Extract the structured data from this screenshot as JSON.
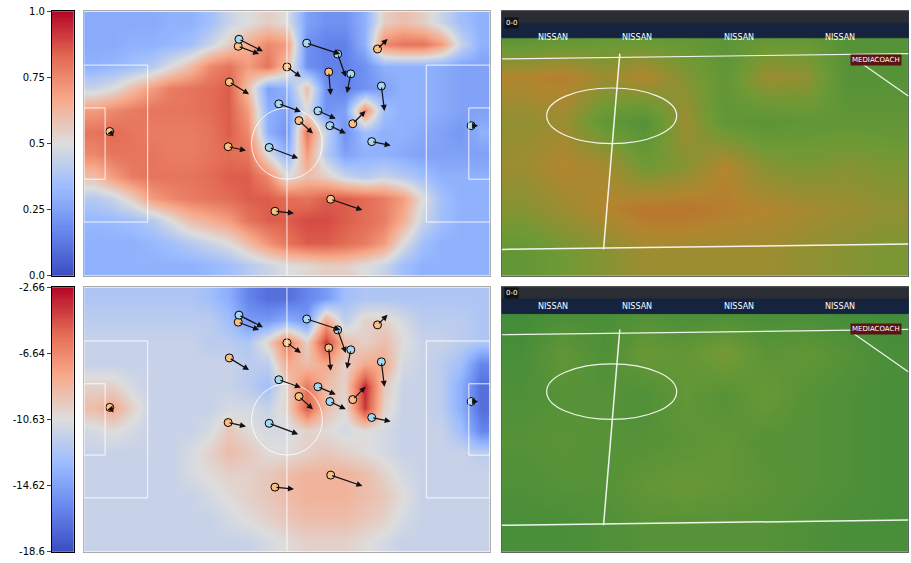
{
  "chart_data": [
    {
      "type": "heatmap",
      "tick_labels": false,
      "xlim": [
        0,
        105
      ],
      "ylim": [
        0,
        68
      ],
      "x": [
        2.5,
        7.5,
        12.5,
        17.5,
        22.5,
        27.5,
        32.5,
        37.5,
        42.5,
        47.5,
        52.5,
        57.5,
        62.5,
        67.5,
        72.5,
        77.5,
        82.5,
        87.5,
        92.5,
        97.5,
        102.5
      ],
      "y": [
        2.83,
        8.5,
        14.17,
        19.83,
        25.5,
        31.17,
        36.83,
        42.5,
        48.17,
        53.83,
        59.5,
        65.17
      ],
      "z": [
        [
          0.3,
          0.3,
          0.3,
          0.3,
          0.3,
          0.3,
          0.32,
          0.35,
          0.4,
          0.45,
          0.5,
          0.52,
          0.55,
          0.55,
          0.5,
          0.45,
          0.35,
          0.3,
          0.3,
          0.3,
          0.3
        ],
        [
          0.3,
          0.3,
          0.3,
          0.32,
          0.35,
          0.4,
          0.45,
          0.5,
          0.6,
          0.72,
          0.8,
          0.85,
          0.85,
          0.82,
          0.78,
          0.7,
          0.5,
          0.35,
          0.3,
          0.3,
          0.3
        ],
        [
          0.32,
          0.33,
          0.35,
          0.4,
          0.5,
          0.6,
          0.65,
          0.7,
          0.8,
          0.85,
          0.85,
          0.88,
          0.88,
          0.85,
          0.82,
          0.78,
          0.65,
          0.45,
          0.35,
          0.3,
          0.3
        ],
        [
          0.4,
          0.45,
          0.55,
          0.7,
          0.75,
          0.78,
          0.8,
          0.82,
          0.85,
          0.85,
          0.82,
          0.8,
          0.85,
          0.85,
          0.82,
          0.78,
          0.7,
          0.5,
          0.35,
          0.3,
          0.3
        ],
        [
          0.6,
          0.7,
          0.78,
          0.8,
          0.8,
          0.8,
          0.82,
          0.85,
          0.85,
          0.75,
          0.5,
          0.6,
          0.55,
          0.45,
          0.4,
          0.45,
          0.4,
          0.35,
          0.3,
          0.3,
          0.3
        ],
        [
          0.75,
          0.8,
          0.8,
          0.8,
          0.78,
          0.78,
          0.8,
          0.82,
          0.8,
          0.5,
          0.3,
          0.7,
          0.4,
          0.25,
          0.3,
          0.3,
          0.28,
          0.25,
          0.25,
          0.25,
          0.25
        ],
        [
          0.8,
          0.82,
          0.8,
          0.78,
          0.78,
          0.78,
          0.8,
          0.85,
          0.75,
          0.3,
          0.2,
          0.8,
          0.45,
          0.2,
          0.35,
          0.3,
          0.3,
          0.28,
          0.25,
          0.22,
          0.3
        ],
        [
          0.7,
          0.75,
          0.78,
          0.8,
          0.8,
          0.8,
          0.82,
          0.85,
          0.7,
          0.3,
          0.25,
          0.5,
          0.2,
          0.25,
          0.75,
          0.35,
          0.3,
          0.3,
          0.28,
          0.25,
          0.25
        ],
        [
          0.45,
          0.5,
          0.6,
          0.7,
          0.78,
          0.8,
          0.82,
          0.85,
          0.6,
          0.25,
          0.3,
          0.6,
          0.2,
          0.15,
          0.2,
          0.25,
          0.3,
          0.3,
          0.28,
          0.25,
          0.25
        ],
        [
          0.3,
          0.32,
          0.35,
          0.4,
          0.5,
          0.6,
          0.75,
          0.8,
          0.7,
          0.8,
          0.6,
          0.2,
          0.15,
          0.15,
          0.2,
          0.3,
          0.3,
          0.3,
          0.28,
          0.25,
          0.25
        ],
        [
          0.28,
          0.28,
          0.3,
          0.3,
          0.32,
          0.35,
          0.45,
          0.55,
          0.65,
          0.75,
          0.7,
          0.2,
          0.15,
          0.15,
          0.3,
          0.75,
          0.8,
          0.8,
          0.7,
          0.45,
          0.3
        ],
        [
          0.28,
          0.28,
          0.28,
          0.28,
          0.3,
          0.3,
          0.35,
          0.45,
          0.5,
          0.55,
          0.5,
          0.25,
          0.2,
          0.2,
          0.3,
          0.55,
          0.6,
          0.55,
          0.45,
          0.35,
          0.3
        ]
      ],
      "zlim": [
        0,
        1
      ],
      "zticks": [
        {
          "value": 1,
          "label": "1.0"
        },
        0.75,
        0.5,
        0.25,
        {
          "value": 0,
          "label": "0.0"
        }
      ],
      "players": [
        {
          "x": 6.7,
          "y": 37.1,
          "dx": 1.0,
          "dy": -1.3,
          "color": "#fbbf80"
        },
        {
          "x": 39.9,
          "y": 59.0,
          "dx": 5.4,
          "dy": -2.0,
          "color": "#fbbf80"
        },
        {
          "x": 52.5,
          "y": 53.7,
          "dx": 3.6,
          "dy": -2.6,
          "color": "#fbbf80"
        },
        {
          "x": 75.9,
          "y": 58.3,
          "dx": 2.6,
          "dy": 2.6,
          "color": "#fbbf80"
        },
        {
          "x": 63.3,
          "y": 52.4,
          "dx": 0.5,
          "dy": -5.9,
          "color": "#fbbf80"
        },
        {
          "x": 37.6,
          "y": 49.8,
          "dx": 5.1,
          "dy": -3.1,
          "color": "#fbbf80"
        },
        {
          "x": 55.6,
          "y": 39.9,
          "dx": 3.6,
          "dy": -3.3,
          "color": "#fbbf80"
        },
        {
          "x": 69.5,
          "y": 39.1,
          "dx": 3.3,
          "dy": 3.3,
          "color": "#fbbf80"
        },
        {
          "x": 37.3,
          "y": 33.2,
          "dx": 4.6,
          "dy": -1.0,
          "color": "#fbbf80"
        },
        {
          "x": 49.4,
          "y": 16.6,
          "dx": 4.9,
          "dy": -0.5,
          "color": "#fbbf80"
        },
        {
          "x": 63.8,
          "y": 19.7,
          "dx": 8.2,
          "dy": -2.8,
          "color": "#fbbf80"
        },
        {
          "x": 40.1,
          "y": 60.8,
          "dx": 6.2,
          "dy": -3.1,
          "color": "#a6d8f2"
        },
        {
          "x": 57.6,
          "y": 59.8,
          "dx": 8.7,
          "dy": -2.8,
          "color": "#a6d8f2"
        },
        {
          "x": 65.6,
          "y": 57.0,
          "dx": 2.1,
          "dy": -5.9,
          "color": "#a6d8f2"
        },
        {
          "x": 69.0,
          "y": 51.9,
          "dx": -1.0,
          "dy": -4.9,
          "color": "#a6d8f2"
        },
        {
          "x": 76.9,
          "y": 48.8,
          "dx": 0.8,
          "dy": -6.4,
          "color": "#a6d8f2"
        },
        {
          "x": 50.4,
          "y": 44.2,
          "dx": 5.7,
          "dy": -2.0,
          "color": "#a6d8f2"
        },
        {
          "x": 60.5,
          "y": 42.4,
          "dx": 4.6,
          "dy": -2.0,
          "color": "#a6d8f2"
        },
        {
          "x": 63.6,
          "y": 38.6,
          "dx": 4.1,
          "dy": -2.0,
          "color": "#a6d8f2"
        },
        {
          "x": 74.4,
          "y": 34.5,
          "dx": 4.9,
          "dy": -1.0,
          "color": "#a6d8f2"
        },
        {
          "x": 47.9,
          "y": 33.0,
          "dx": 7.5,
          "dy": -2.8,
          "color": "#a6d8f2"
        },
        {
          "x": 100.1,
          "y": 38.6,
          "dx": 1.8,
          "dy": 0,
          "color": "#a6d8f2"
        }
      ]
    },
    {
      "type": "heatmap",
      "tick_labels": false,
      "xlim": [
        0,
        105
      ],
      "ylim": [
        0,
        68
      ],
      "x": [
        2.5,
        7.5,
        12.5,
        17.5,
        22.5,
        27.5,
        32.5,
        37.5,
        42.5,
        47.5,
        52.5,
        57.5,
        62.5,
        67.5,
        72.5,
        77.5,
        82.5,
        87.5,
        92.5,
        97.5,
        102.5
      ],
      "y": [
        2.83,
        8.5,
        14.17,
        19.83,
        25.5,
        31.17,
        36.83,
        42.5,
        48.17,
        53.83,
        59.5,
        65.17
      ],
      "z": [
        [
          -11.5,
          -11.5,
          -11.5,
          -11.5,
          -11.5,
          -11.5,
          -11.5,
          -11.5,
          -11.5,
          -11,
          -10.5,
          -10,
          -10,
          -10,
          -10.5,
          -11,
          -11.5,
          -11.5,
          -11.5,
          -11.5,
          -11.5
        ],
        [
          -11.5,
          -11.5,
          -11.5,
          -11.5,
          -11.5,
          -11.5,
          -11.5,
          -11,
          -10.5,
          -10,
          -9.5,
          -9,
          -9,
          -9,
          -9.5,
          -10,
          -11,
          -11.5,
          -11.5,
          -11.5,
          -11.5
        ],
        [
          -11.5,
          -11.5,
          -11.5,
          -11.5,
          -11.5,
          -11.5,
          -11,
          -10.5,
          -10,
          -9.5,
          -9,
          -8.5,
          -8.5,
          -8.5,
          -9,
          -9.5,
          -10.5,
          -11.5,
          -11.5,
          -11.5,
          -11.5
        ],
        [
          -11.5,
          -11.5,
          -11.5,
          -11.5,
          -11.5,
          -11,
          -10.5,
          -10,
          -10,
          -9.5,
          -9,
          -8.5,
          -8.5,
          -8.5,
          -9,
          -10,
          -11,
          -11.5,
          -11.5,
          -11.5,
          -11.5
        ],
        [
          -11.5,
          -11.5,
          -11.5,
          -11.5,
          -11.5,
          -11,
          -10,
          -9,
          -9.5,
          -10.5,
          -10.5,
          -10,
          -9.5,
          -10,
          -10.5,
          -11,
          -11.5,
          -11.5,
          -11.5,
          -11.5,
          -12
        ],
        [
          -11,
          -10.5,
          -11,
          -11.5,
          -11.5,
          -11.5,
          -11,
          -9.5,
          -10.5,
          -11,
          -11,
          -10,
          -10.5,
          -11,
          -10.5,
          -11,
          -11.5,
          -11.5,
          -11.5,
          -13,
          -16
        ],
        [
          -9,
          -8,
          -10,
          -11.5,
          -11.5,
          -11.5,
          -11.5,
          -11,
          -11,
          -11.5,
          -10,
          -5,
          -9,
          -10.5,
          -4,
          -10,
          -11.5,
          -11.5,
          -12,
          -14,
          -17
        ],
        [
          -10,
          -10,
          -11,
          -11.5,
          -11.5,
          -11.5,
          -11.5,
          -11.5,
          -12,
          -13,
          -10,
          -6,
          -9,
          -10,
          -3.5,
          -9.5,
          -11.5,
          -11.5,
          -12,
          -14,
          -17
        ],
        [
          -11.5,
          -11.5,
          -11.5,
          -11.5,
          -11.5,
          -11.5,
          -11.5,
          -11.5,
          -12,
          -12,
          -8,
          -9,
          -8,
          -10,
          -8,
          -8,
          -11,
          -11.5,
          -12,
          -13,
          -16
        ],
        [
          -11.5,
          -11.5,
          -11.5,
          -11.5,
          -11.5,
          -11.5,
          -12,
          -12,
          -12.5,
          -10,
          -6,
          -10,
          -4,
          -9,
          -10,
          -9,
          -10.5,
          -11.5,
          -11.5,
          -12,
          -12.5
        ],
        [
          -12,
          -12,
          -12,
          -12,
          -12,
          -12,
          -12,
          -13,
          -15,
          -15,
          -14,
          -15,
          -8,
          -12,
          -10,
          -10,
          -11,
          -12,
          -12,
          -12,
          -12.5
        ],
        [
          -12.5,
          -12.5,
          -12.5,
          -12.5,
          -12.5,
          -12.5,
          -13,
          -14,
          -16,
          -17,
          -17,
          -16,
          -15,
          -13,
          -12.5,
          -12.5,
          -12.5,
          -12.5,
          -12.5,
          -12.5,
          -12.5
        ]
      ],
      "zlim": [
        -18.6,
        -2.66
      ],
      "zticks": [
        -2.66,
        -6.64,
        -10.63,
        -14.62,
        -18.6
      ],
      "players": [
        {
          "x": 6.7,
          "y": 37.1,
          "dx": 1.0,
          "dy": -1.3,
          "color": "#fbbf80"
        },
        {
          "x": 39.9,
          "y": 59.0,
          "dx": 5.4,
          "dy": -2.0,
          "color": "#fbbf80"
        },
        {
          "x": 52.5,
          "y": 53.7,
          "dx": 3.6,
          "dy": -2.6,
          "color": "#fbbf80"
        },
        {
          "x": 75.9,
          "y": 58.3,
          "dx": 2.6,
          "dy": 2.6,
          "color": "#fbbf80"
        },
        {
          "x": 63.3,
          "y": 52.4,
          "dx": 0.5,
          "dy": -5.9,
          "color": "#fbbf80"
        },
        {
          "x": 37.6,
          "y": 49.8,
          "dx": 5.1,
          "dy": -3.1,
          "color": "#fbbf80"
        },
        {
          "x": 55.6,
          "y": 39.9,
          "dx": 3.6,
          "dy": -3.3,
          "color": "#fbbf80"
        },
        {
          "x": 69.5,
          "y": 39.1,
          "dx": 3.3,
          "dy": 3.3,
          "color": "#fbbf80"
        },
        {
          "x": 37.3,
          "y": 33.2,
          "dx": 4.6,
          "dy": -1.0,
          "color": "#fbbf80"
        },
        {
          "x": 49.4,
          "y": 16.6,
          "dx": 4.9,
          "dy": -0.5,
          "color": "#fbbf80"
        },
        {
          "x": 63.8,
          "y": 19.7,
          "dx": 8.2,
          "dy": -2.8,
          "color": "#fbbf80"
        },
        {
          "x": 40.1,
          "y": 60.8,
          "dx": 6.2,
          "dy": -3.1,
          "color": "#a6d8f2"
        },
        {
          "x": 57.6,
          "y": 59.8,
          "dx": 8.7,
          "dy": -2.8,
          "color": "#a6d8f2"
        },
        {
          "x": 65.6,
          "y": 57.0,
          "dx": 2.1,
          "dy": -5.9,
          "color": "#a6d8f2"
        },
        {
          "x": 69.0,
          "y": 51.9,
          "dx": -1.0,
          "dy": -4.9,
          "color": "#a6d8f2"
        },
        {
          "x": 76.9,
          "y": 48.8,
          "dx": 0.8,
          "dy": -6.4,
          "color": "#a6d8f2"
        },
        {
          "x": 50.4,
          "y": 44.2,
          "dx": 5.7,
          "dy": -2.0,
          "color": "#a6d8f2"
        },
        {
          "x": 60.5,
          "y": 42.4,
          "dx": 4.6,
          "dy": -2.0,
          "color": "#a6d8f2"
        },
        {
          "x": 63.6,
          "y": 38.6,
          "dx": 4.1,
          "dy": -2.0,
          "color": "#a6d8f2"
        },
        {
          "x": 74.4,
          "y": 34.5,
          "dx": 4.9,
          "dy": -1.0,
          "color": "#a6d8f2"
        },
        {
          "x": 47.9,
          "y": 33.0,
          "dx": 7.5,
          "dy": -2.8,
          "color": "#a6d8f2"
        },
        {
          "x": 100.1,
          "y": 38.6,
          "dx": 1.8,
          "dy": 0,
          "color": "#a6d8f2"
        }
      ]
    },
    {
      "type": "overlay",
      "tick_labels": false,
      "xlim": [
        -0.5,
        9.5
      ],
      "ylim": [
        -0.5,
        5.5
      ],
      "x": [
        0,
        1,
        2,
        3,
        4,
        5,
        6,
        7,
        8,
        9
      ],
      "y": [
        0,
        1,
        2,
        3,
        4,
        5
      ],
      "z": [
        [
          0.3,
          0.4,
          0.5,
          0.6,
          0.6,
          0.6,
          0.6,
          0.55,
          0.5,
          0.45
        ],
        [
          0.5,
          0.6,
          0.7,
          0.8,
          0.8,
          0.75,
          0.7,
          0.65,
          0.6,
          0.55
        ],
        [
          0.6,
          0.7,
          0.65,
          0.4,
          0.5,
          0.7,
          0.5,
          0.45,
          0.5,
          0.45
        ],
        [
          0.55,
          0.6,
          0.3,
          0.2,
          0.6,
          0.3,
          0.25,
          0.3,
          0.3,
          0.3
        ],
        [
          0.7,
          0.75,
          0.6,
          0.7,
          0.5,
          0.3,
          0.6,
          0.55,
          0.2,
          0.2
        ],
        [
          0.2,
          0.25,
          0.3,
          0.3,
          0.3,
          0.25,
          0.3,
          0.3,
          0.2,
          0.2
        ]
      ],
      "zlim": [
        0,
        1
      ],
      "score": "0-0",
      "banner": [
        "NISSAN",
        "NISSAN",
        "NISSAN",
        "NISSAN"
      ],
      "logo": "MEDIACOACH"
    },
    {
      "type": "overlay",
      "tick_labels": false,
      "xlim": [
        -0.5,
        9.5
      ],
      "ylim": [
        -0.5,
        5.5
      ],
      "x": [
        0,
        1,
        2,
        3,
        4,
        5,
        6,
        7,
        8,
        9
      ],
      "y": [
        0,
        1,
        2,
        3,
        4,
        5
      ],
      "z": [
        [
          0.1,
          0.1,
          0.15,
          0.2,
          0.2,
          0.2,
          0.2,
          0.15,
          0.1,
          0.1
        ],
        [
          0.15,
          0.2,
          0.2,
          0.3,
          0.35,
          0.3,
          0.25,
          0.2,
          0.15,
          0.1
        ],
        [
          0.2,
          0.25,
          0.2,
          0.2,
          0.25,
          0.3,
          0.2,
          0.2,
          0.15,
          0.1
        ],
        [
          0.15,
          0.2,
          0.2,
          0.15,
          0.3,
          0.2,
          0.35,
          0.2,
          0.15,
          0.1
        ],
        [
          0.1,
          0.3,
          0.15,
          0.35,
          0.3,
          0.45,
          0.25,
          0.3,
          0.2,
          0.1
        ],
        [
          0.05,
          0.1,
          0.1,
          0.15,
          0.1,
          0.1,
          0.1,
          0.1,
          0.05,
          0.05
        ]
      ],
      "zlim": [
        0,
        1
      ],
      "score": "0-0",
      "banner": [
        "NISSAN",
        "NISSAN",
        "NISSAN",
        "NISSAN"
      ],
      "logo": "MEDIACOACH"
    }
  ]
}
